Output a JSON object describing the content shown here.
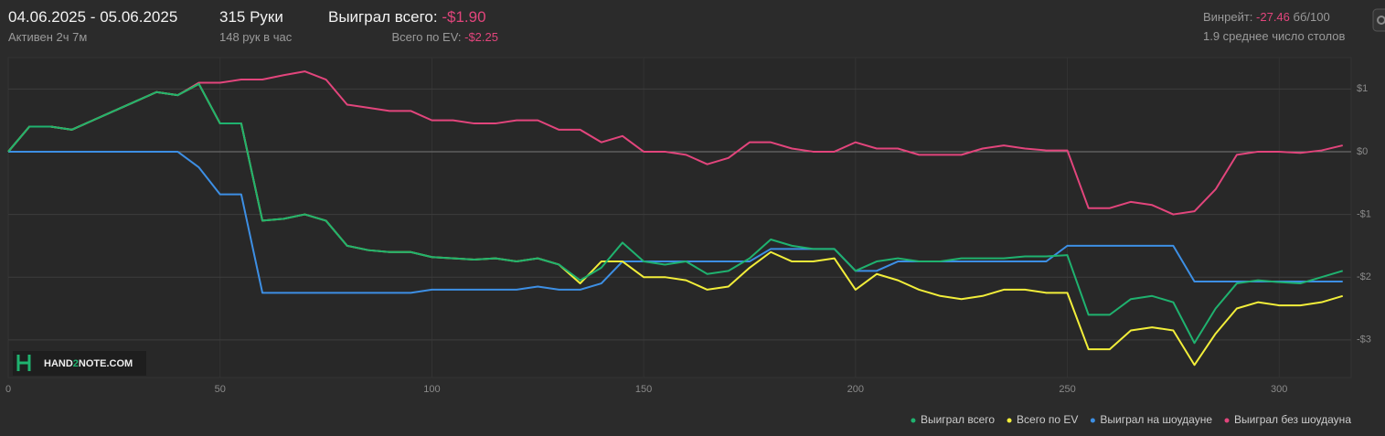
{
  "header": {
    "date_range": "04.06.2025 - 05.06.2025",
    "active": "Активен 2ч 7м",
    "hands": "315 Руки",
    "hands_per_hour": "148 рук в час",
    "won_label": "Выиграл всего:",
    "won_value": "-$1.90",
    "ev_label": "Всего по EV:",
    "ev_value": "-$2.25",
    "winrate_label": "Винрейт:",
    "winrate_value": "-27.46",
    "winrate_unit": "бб/100",
    "tables": "1.9 среднее число столов"
  },
  "watermark": {
    "part1": "HAND",
    "part2": "2",
    "part3": "NOTE.COM"
  },
  "chart_data": {
    "type": "line",
    "grid": true,
    "legend": "bottom-right",
    "x": [
      0,
      5,
      10,
      15,
      20,
      25,
      30,
      35,
      40,
      45,
      50,
      55,
      60,
      65,
      70,
      75,
      80,
      85,
      90,
      95,
      100,
      105,
      110,
      115,
      120,
      125,
      130,
      135,
      140,
      145,
      150,
      155,
      160,
      165,
      170,
      175,
      180,
      185,
      190,
      195,
      200,
      205,
      210,
      215,
      220,
      225,
      230,
      235,
      240,
      245,
      250,
      255,
      260,
      265,
      270,
      275,
      280,
      285,
      290,
      295,
      300,
      305,
      310,
      315
    ],
    "xlim": [
      0,
      317
    ],
    "xticks": [
      0,
      50,
      100,
      150,
      200,
      250,
      300
    ],
    "ylim": [
      -3.6,
      1.5
    ],
    "yticks": [
      {
        "value": -3,
        "label": "-$3"
      },
      {
        "value": -2,
        "label": "-$2"
      },
      {
        "value": -1,
        "label": "-$1"
      },
      {
        "value": 0,
        "label": "$0"
      },
      {
        "value": 1,
        "label": "$1"
      }
    ],
    "series": [
      {
        "name": "Выиграл всего",
        "color": "#1fb26f",
        "values": [
          0,
          0.4,
          0.4,
          0.35,
          0.5,
          0.65,
          0.8,
          0.95,
          0.9,
          1.08,
          0.45,
          0.45,
          -1.1,
          -1.07,
          -1.0,
          -1.1,
          -1.5,
          -1.57,
          -1.6,
          -1.6,
          -1.68,
          -1.7,
          -1.72,
          -1.7,
          -1.75,
          -1.7,
          -1.8,
          -2.05,
          -1.85,
          -1.45,
          -1.75,
          -1.8,
          -1.75,
          -1.95,
          -1.9,
          -1.7,
          -1.4,
          -1.5,
          -1.55,
          -1.55,
          -1.9,
          -1.75,
          -1.7,
          -1.75,
          -1.75,
          -1.7,
          -1.7,
          -1.7,
          -1.67,
          -1.67,
          -1.65,
          -2.6,
          -2.6,
          -2.35,
          -2.3,
          -2.4,
          -3.05,
          -2.5,
          -2.1,
          -2.05,
          -2.08,
          -2.1,
          -2.0,
          -1.9
        ]
      },
      {
        "name": "Всего по EV",
        "color": "#f2ee3a",
        "values": [
          0,
          0.4,
          0.4,
          0.35,
          0.5,
          0.65,
          0.8,
          0.95,
          0.9,
          1.08,
          0.45,
          0.45,
          -1.1,
          -1.07,
          -1.0,
          -1.1,
          -1.5,
          -1.57,
          -1.6,
          -1.6,
          -1.68,
          -1.7,
          -1.72,
          -1.7,
          -1.75,
          -1.7,
          -1.8,
          -2.1,
          -1.75,
          -1.75,
          -2.0,
          -2.0,
          -2.05,
          -2.2,
          -2.15,
          -1.85,
          -1.6,
          -1.75,
          -1.75,
          -1.7,
          -2.2,
          -1.95,
          -2.05,
          -2.2,
          -2.3,
          -2.35,
          -2.3,
          -2.2,
          -2.2,
          -2.25,
          -2.25,
          -3.15,
          -3.15,
          -2.85,
          -2.8,
          -2.85,
          -3.4,
          -2.9,
          -2.5,
          -2.4,
          -2.45,
          -2.45,
          -2.4,
          -2.3
        ]
      },
      {
        "name": "Выиграл на шоудауне",
        "color": "#3d8fe4",
        "values": [
          0,
          0,
          0,
          0,
          0,
          0,
          0,
          0,
          0,
          -0.25,
          -0.68,
          -0.68,
          -2.25,
          -2.25,
          -2.25,
          -2.25,
          -2.25,
          -2.25,
          -2.25,
          -2.25,
          -2.2,
          -2.2,
          -2.2,
          -2.2,
          -2.2,
          -2.15,
          -2.2,
          -2.2,
          -2.1,
          -1.75,
          -1.75,
          -1.75,
          -1.75,
          -1.75,
          -1.75,
          -1.75,
          -1.55,
          -1.55,
          -1.55,
          -1.55,
          -1.9,
          -1.9,
          -1.75,
          -1.75,
          -1.75,
          -1.75,
          -1.75,
          -1.75,
          -1.75,
          -1.75,
          -1.5,
          -1.5,
          -1.5,
          -1.5,
          -1.5,
          -1.5,
          -2.07,
          -2.07,
          -2.07,
          -2.07,
          -2.07,
          -2.07,
          -2.07,
          -2.07
        ]
      },
      {
        "name": "Выиграл без шоудауна",
        "color": "#e2457c",
        "values": [
          0,
          0.4,
          0.4,
          0.35,
          0.5,
          0.65,
          0.8,
          0.95,
          0.9,
          1.1,
          1.1,
          1.15,
          1.15,
          1.22,
          1.28,
          1.15,
          0.75,
          0.7,
          0.65,
          0.65,
          0.5,
          0.5,
          0.45,
          0.45,
          0.5,
          0.5,
          0.35,
          0.35,
          0.15,
          0.25,
          0.0,
          0.0,
          -0.05,
          -0.2,
          -0.1,
          0.15,
          0.15,
          0.05,
          0.0,
          0.0,
          0.15,
          0.05,
          0.05,
          -0.05,
          -0.05,
          -0.05,
          0.05,
          0.1,
          0.05,
          0.02,
          0.02,
          -0.9,
          -0.9,
          -0.8,
          -0.85,
          -1.0,
          -0.95,
          -0.6,
          -0.05,
          0.0,
          0.0,
          -0.02,
          0.02,
          0.1
        ]
      }
    ]
  }
}
